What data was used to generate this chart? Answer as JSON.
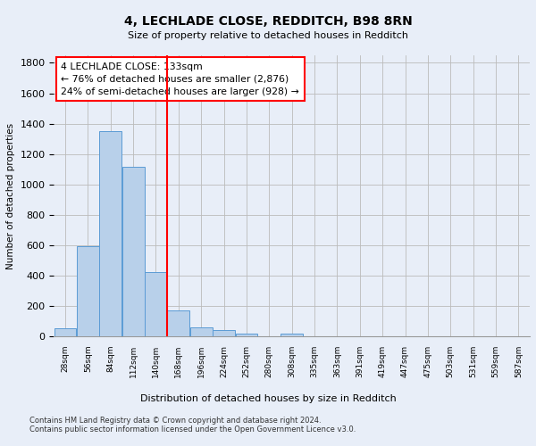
{
  "title": "4, LECHLADE CLOSE, REDDITCH, B98 8RN",
  "subtitle": "Size of property relative to detached houses in Redditch",
  "xlabel": "Distribution of detached houses by size in Redditch",
  "ylabel": "Number of detached properties",
  "footer_line1": "Contains HM Land Registry data © Crown copyright and database right 2024.",
  "footer_line2": "Contains public sector information licensed under the Open Government Licence v3.0.",
  "bin_labels": [
    "28sqm",
    "56sqm",
    "84sqm",
    "112sqm",
    "140sqm",
    "168sqm",
    "196sqm",
    "224sqm",
    "252sqm",
    "280sqm",
    "308sqm",
    "335sqm",
    "363sqm",
    "391sqm",
    "419sqm",
    "447sqm",
    "475sqm",
    "503sqm",
    "531sqm",
    "559sqm",
    "587sqm"
  ],
  "bar_values": [
    50,
    595,
    1350,
    1115,
    425,
    170,
    58,
    38,
    18,
    0,
    18,
    0,
    0,
    0,
    0,
    0,
    0,
    0,
    0,
    0,
    0
  ],
  "bar_color": "#b8d0ea",
  "bar_edgecolor": "#5b9bd5",
  "grid_color": "#bbbbbb",
  "background_color": "#e8eef8",
  "vline_color": "red",
  "annotation_text": "4 LECHLADE CLOSE: 133sqm\n← 76% of detached houses are smaller (2,876)\n24% of semi-detached houses are larger (928) →",
  "annotation_box_color": "white",
  "annotation_border_color": "red",
  "ylim": [
    0,
    1850
  ],
  "bin_width": 28,
  "n_bins": 21
}
